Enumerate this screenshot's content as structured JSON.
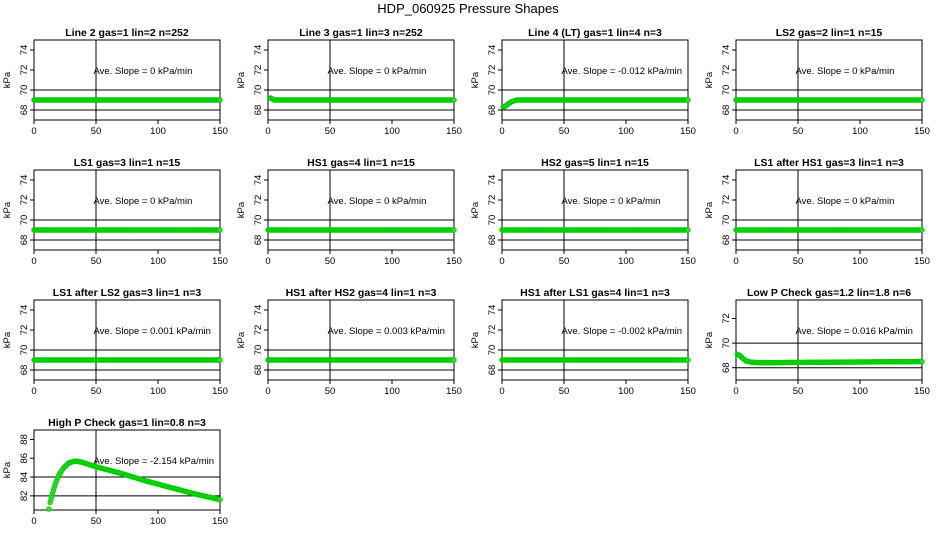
{
  "page_title": "HDP_060925  Pressure Shapes",
  "colors": {
    "points": "#00cc00",
    "point_fill": "#33dd33",
    "axes": "#000000"
  },
  "chart_data": [
    {
      "type": "scatter",
      "title": "Line 2 gas=1 lin=2 n=252",
      "annotation": "Ave. Slope =  0  kPa/min",
      "ylabel": "kPa",
      "xlim": [
        0,
        150
      ],
      "ylim": [
        67,
        75
      ],
      "xticks": [
        0,
        50,
        100,
        150
      ],
      "yticks": [
        68,
        70,
        72,
        74
      ],
      "ref_x": 50,
      "ref_y": [
        68,
        70
      ],
      "series": [
        {
          "points": [
            [
              0,
              69.0
            ],
            [
              150,
              69.0
            ]
          ]
        }
      ]
    },
    {
      "type": "scatter",
      "title": "Line 3 gas=1 lin=3 n=252",
      "annotation": "Ave. Slope =  0  kPa/min",
      "ylabel": "kPa",
      "xlim": [
        0,
        150
      ],
      "ylim": [
        67,
        75
      ],
      "xticks": [
        0,
        50,
        100,
        150
      ],
      "yticks": [
        68,
        70,
        72,
        74
      ],
      "ref_x": 50,
      "ref_y": [
        68,
        70
      ],
      "series": [
        {
          "points": [
            [
              2,
              69.2
            ],
            [
              5,
              69.0
            ],
            [
              150,
              69.0
            ]
          ]
        }
      ]
    },
    {
      "type": "scatter",
      "title": "Line 4 (LT) gas=1 lin=4 n=3",
      "annotation": "Ave. Slope =  -0.012  kPa/min",
      "ylabel": "kPa",
      "xlim": [
        0,
        150
      ],
      "ylim": [
        67,
        75
      ],
      "xticks": [
        0,
        50,
        100,
        150
      ],
      "yticks": [
        68,
        70,
        72,
        74
      ],
      "ref_x": 50,
      "ref_y": [
        68,
        70
      ],
      "series": [
        {
          "points": [
            [
              1,
              68.3
            ],
            [
              3,
              68.4
            ],
            [
              5,
              68.6
            ],
            [
              8,
              68.85
            ],
            [
              12,
              69.0
            ],
            [
              20,
              69.0
            ],
            [
              150,
              69.0
            ]
          ]
        }
      ]
    },
    {
      "type": "scatter",
      "title": "LS2 gas=2 lin=1 n=15",
      "annotation": "Ave. Slope =  0  kPa/min",
      "ylabel": "kPa",
      "xlim": [
        0,
        150
      ],
      "ylim": [
        67,
        75
      ],
      "xticks": [
        0,
        50,
        100,
        150
      ],
      "yticks": [
        68,
        70,
        72,
        74
      ],
      "ref_x": 50,
      "ref_y": [
        68,
        70
      ],
      "series": [
        {
          "points": [
            [
              0,
              69.0
            ],
            [
              150,
              69.0
            ]
          ]
        }
      ]
    },
    {
      "type": "scatter",
      "title": "LS1 gas=3 lin=1 n=15",
      "annotation": "Ave. Slope =  0  kPa/min",
      "ylabel": "kPa",
      "xlim": [
        0,
        150
      ],
      "ylim": [
        67,
        75
      ],
      "xticks": [
        0,
        50,
        100,
        150
      ],
      "yticks": [
        68,
        70,
        72,
        74
      ],
      "ref_x": 50,
      "ref_y": [
        68,
        70
      ],
      "series": [
        {
          "points": [
            [
              0,
              69.0
            ],
            [
              150,
              69.0
            ]
          ]
        }
      ]
    },
    {
      "type": "scatter",
      "title": "HS1 gas=4 lin=1 n=15",
      "annotation": "Ave. Slope =  0  kPa/min",
      "ylabel": "kPa",
      "xlim": [
        0,
        150
      ],
      "ylim": [
        67,
        75
      ],
      "xticks": [
        0,
        50,
        100,
        150
      ],
      "yticks": [
        68,
        70,
        72,
        74
      ],
      "ref_x": 50,
      "ref_y": [
        68,
        70
      ],
      "series": [
        {
          "points": [
            [
              0,
              69.0
            ],
            [
              150,
              69.0
            ]
          ]
        }
      ]
    },
    {
      "type": "scatter",
      "title": "HS2 gas=5 lin=1 n=15",
      "annotation": "Ave. Slope =  0  kPa/min",
      "ylabel": "kPa",
      "xlim": [
        0,
        150
      ],
      "ylim": [
        67,
        75
      ],
      "xticks": [
        0,
        50,
        100,
        150
      ],
      "yticks": [
        68,
        70,
        72,
        74
      ],
      "ref_x": 50,
      "ref_y": [
        68,
        70
      ],
      "series": [
        {
          "points": [
            [
              0,
              69.0
            ],
            [
              150,
              69.0
            ]
          ]
        }
      ]
    },
    {
      "type": "scatter",
      "title": "LS1 after HS1 gas=3 lin=1 n=3",
      "annotation": "Ave. Slope =  0  kPa/min",
      "ylabel": "kPa",
      "xlim": [
        0,
        150
      ],
      "ylim": [
        67,
        75
      ],
      "xticks": [
        0,
        50,
        100,
        150
      ],
      "yticks": [
        68,
        70,
        72,
        74
      ],
      "ref_x": 50,
      "ref_y": [
        68,
        70
      ],
      "series": [
        {
          "points": [
            [
              0,
              69.0
            ],
            [
              150,
              69.0
            ]
          ]
        }
      ]
    },
    {
      "type": "scatter",
      "title": "LS1 after LS2 gas=3 lin=1 n=3",
      "annotation": "Ave. Slope =  0.001  kPa/min",
      "ylabel": "kPa",
      "xlim": [
        0,
        150
      ],
      "ylim": [
        67,
        75
      ],
      "xticks": [
        0,
        50,
        100,
        150
      ],
      "yticks": [
        68,
        70,
        72,
        74
      ],
      "ref_x": 50,
      "ref_y": [
        68,
        70
      ],
      "series": [
        {
          "points": [
            [
              0,
              69.0
            ],
            [
              150,
              69.0
            ]
          ]
        }
      ]
    },
    {
      "type": "scatter",
      "title": "HS1 after HS2 gas=4 lin=1 n=3",
      "annotation": "Ave. Slope =  0.003  kPa/min",
      "ylabel": "kPa",
      "xlim": [
        0,
        150
      ],
      "ylim": [
        67,
        75
      ],
      "xticks": [
        0,
        50,
        100,
        150
      ],
      "yticks": [
        68,
        70,
        72,
        74
      ],
      "ref_x": 50,
      "ref_y": [
        68,
        70
      ],
      "series": [
        {
          "points": [
            [
              0,
              69.0
            ],
            [
              150,
              69.0
            ]
          ]
        }
      ]
    },
    {
      "type": "scatter",
      "title": "HS1 after LS1 gas=4 lin=1 n=3",
      "annotation": "Ave. Slope =  -0.002  kPa/min",
      "ylabel": "kPa",
      "xlim": [
        0,
        150
      ],
      "ylim": [
        67,
        75
      ],
      "xticks": [
        0,
        50,
        100,
        150
      ],
      "yticks": [
        68,
        70,
        72,
        74
      ],
      "ref_x": 50,
      "ref_y": [
        68,
        70
      ],
      "series": [
        {
          "points": [
            [
              0,
              69.0
            ],
            [
              150,
              69.0
            ]
          ]
        }
      ]
    },
    {
      "type": "scatter",
      "title": "Low P Check gas=1.2 lin=1.8 n=6",
      "annotation": "Ave. Slope =  0.016  kPa/min",
      "ylabel": "kPa",
      "xlim": [
        0,
        150
      ],
      "ylim": [
        67,
        73.5
      ],
      "xticks": [
        0,
        50,
        100,
        150
      ],
      "yticks": [
        68,
        70,
        72
      ],
      "ref_x": 50,
      "ref_y": [
        68,
        70
      ],
      "series": [
        {
          "points": [
            [
              1,
              69.1
            ],
            [
              3,
              69.0
            ],
            [
              5,
              68.8
            ],
            [
              8,
              68.55
            ],
            [
              12,
              68.45
            ],
            [
              20,
              68.4
            ],
            [
              40,
              68.42
            ],
            [
              80,
              68.45
            ],
            [
              150,
              68.5
            ]
          ]
        }
      ]
    },
    {
      "type": "scatter",
      "title": "High P Check gas=1 lin=0.8 n=3",
      "annotation": "Ave. Slope =  -2.154  kPa/min",
      "ylabel": "kPa",
      "xlim": [
        0,
        150
      ],
      "ylim": [
        80.5,
        89
      ],
      "xticks": [
        0,
        50,
        100,
        150
      ],
      "yticks": [
        82,
        84,
        86,
        88
      ],
      "ref_x": 50,
      "ref_y": [
        82,
        84
      ],
      "series": [
        {
          "points": [
            [
              12,
              80.6
            ],
            [
              13,
              81.3
            ],
            [
              15,
              82.3
            ],
            [
              17,
              83.2
            ],
            [
              20,
              84.2
            ],
            [
              24,
              85.0
            ],
            [
              28,
              85.5
            ],
            [
              33,
              85.7
            ],
            [
              38,
              85.6
            ],
            [
              50,
              85.1
            ],
            [
              70,
              84.4
            ],
            [
              90,
              83.6
            ],
            [
              110,
              82.9
            ],
            [
              130,
              82.2
            ],
            [
              150,
              81.6
            ]
          ]
        }
      ]
    }
  ]
}
